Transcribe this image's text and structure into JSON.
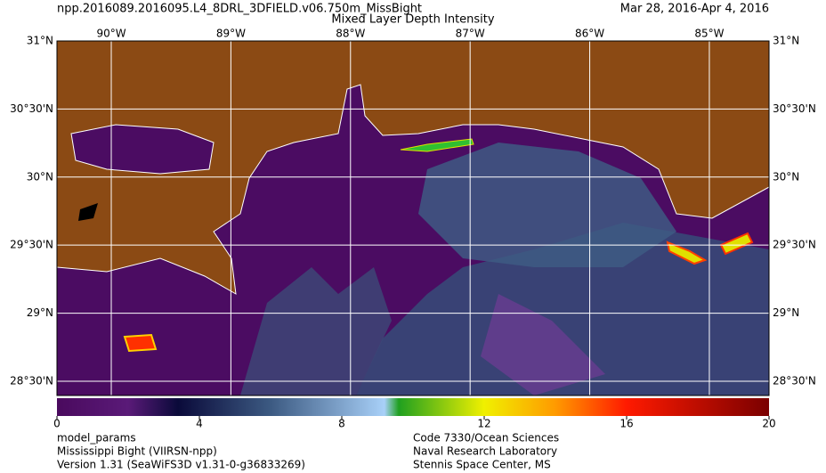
{
  "header": {
    "title": "npp.2016089.2016095.L4_8DRL_3DFIELD.v06.750m_MissBight",
    "subtitle": "Mixed Layer Depth Intensity",
    "date": "Mar 28, 2016-Apr  4, 2016"
  },
  "map": {
    "lonlim": [
      -90.454,
      -84.501
    ],
    "latlim": [
      28.395,
      31
    ],
    "lon_ticks": [
      {
        "value": -90,
        "label": "90°W"
      },
      {
        "value": -89,
        "label": "89°W"
      },
      {
        "value": -88,
        "label": "88°W"
      },
      {
        "value": -87,
        "label": "87°W"
      },
      {
        "value": -86,
        "label": "86°W"
      },
      {
        "value": -85,
        "label": "85°W"
      }
    ],
    "lat_ticks": [
      {
        "value": 31,
        "label": "31°N"
      },
      {
        "value": 30.5,
        "label": "30°30'N"
      },
      {
        "value": 30,
        "label": "30°N"
      },
      {
        "value": 29.5,
        "label": "29°30'N"
      },
      {
        "value": 29,
        "label": "29°N"
      },
      {
        "value": 28.5,
        "label": "28°30'N"
      }
    ]
  },
  "colorbar": {
    "lim": [
      0,
      20
    ],
    "ticks": [
      0,
      4,
      8,
      12,
      16,
      20
    ]
  },
  "footer": {
    "left": [
      "model_params",
      "Mississippi Bight (VIIRSN-npp)",
      "Version 1.31 (SeaWiFS3D v1.31-0-g36833269)"
    ],
    "right": [
      "Code 7330/Ocean Sciences",
      "Naval Research Laboratory",
      "Stennis Space Center, MS"
    ]
  }
}
